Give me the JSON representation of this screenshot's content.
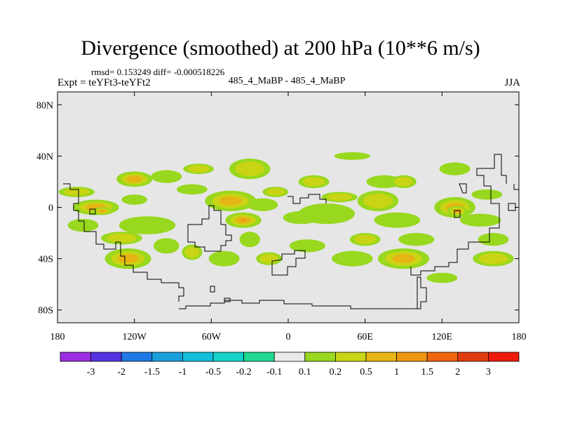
{
  "chart_data": {
    "type": "heatmap",
    "title": "Divergence (smoothed) at 200 hPa (10**6 m/s)",
    "stats_text": "rmsd= 0.153249 diff= -0.000518226",
    "left_label": "Expt = teYFt3-teYFt2",
    "center_label": "485_4_MaBP - 485_4_MaBP",
    "right_label": "JJA",
    "x_axis": {
      "range": [
        -180,
        180
      ],
      "tick_values": [
        -180,
        -120,
        -60,
        0,
        60,
        120,
        180
      ],
      "tick_labels": [
        "180",
        "120W",
        "60W",
        "0",
        "60E",
        "120E",
        "180"
      ]
    },
    "y_axis": {
      "range": [
        -90,
        90
      ],
      "tick_values": [
        80,
        40,
        0,
        -40,
        -80
      ],
      "tick_labels": [
        "80N",
        "40N",
        "0",
        "40S",
        "80S"
      ]
    },
    "colorbar": {
      "levels": [
        "-3",
        "-2",
        "-1.5",
        "-1",
        "-0.5",
        "-0.2",
        "-0.1",
        "0.1",
        "0.2",
        "0.5",
        "1",
        "1.5",
        "2",
        "3"
      ],
      "colors": [
        "#9b2ee0",
        "#5533e0",
        "#1e78e6",
        "#19a0dc",
        "#14bedc",
        "#15d2c8",
        "#20d890",
        "#eaeaea",
        "#98d81e",
        "#c8d414",
        "#e6b414",
        "#ee9614",
        "#ee640f",
        "#e23c0e",
        "#ee1a0a"
      ]
    },
    "anomalies": [
      {
        "lon": -165,
        "lat": 12,
        "rx": 14,
        "ry": 4,
        "cls": 2
      },
      {
        "lon": -150,
        "lat": 0,
        "rx": 18,
        "ry": 6,
        "cls": 3
      },
      {
        "lon": -145,
        "lat": -3,
        "rx": 8,
        "ry": 3,
        "cls": 4
      },
      {
        "lon": -160,
        "lat": -14,
        "rx": 12,
        "ry": 5,
        "cls": 1
      },
      {
        "lon": -120,
        "lat": 6,
        "rx": 10,
        "ry": 4,
        "cls": 1
      },
      {
        "lon": -120,
        "lat": 22,
        "rx": 14,
        "ry": 6,
        "cls": 3
      },
      {
        "lon": -95,
        "lat": 24,
        "rx": 12,
        "ry": 5,
        "cls": 1
      },
      {
        "lon": -75,
        "lat": 14,
        "rx": 12,
        "ry": 4,
        "cls": 1
      },
      {
        "lon": -110,
        "lat": -14,
        "rx": 22,
        "ry": 7,
        "cls": 1
      },
      {
        "lon": -130,
        "lat": -24,
        "rx": 16,
        "ry": 5,
        "cls": 2
      },
      {
        "lon": -125,
        "lat": -40,
        "rx": 18,
        "ry": 8,
        "cls": 3
      },
      {
        "lon": -95,
        "lat": -30,
        "rx": 10,
        "ry": 6,
        "cls": 1
      },
      {
        "lon": -75,
        "lat": -35,
        "rx": 8,
        "ry": 6,
        "cls": 2
      },
      {
        "lon": -45,
        "lat": 5,
        "rx": 20,
        "ry": 8,
        "cls": 3
      },
      {
        "lon": -35,
        "lat": -10,
        "rx": 14,
        "ry": 6,
        "cls": 4
      },
      {
        "lon": -20,
        "lat": 2,
        "rx": 12,
        "ry": 5,
        "cls": 1
      },
      {
        "lon": -30,
        "lat": 30,
        "rx": 16,
        "ry": 8,
        "cls": 2
      },
      {
        "lon": -10,
        "lat": 12,
        "rx": 10,
        "ry": 4,
        "cls": 2
      },
      {
        "lon": -30,
        "lat": -25,
        "rx": 8,
        "ry": 6,
        "cls": 1
      },
      {
        "lon": -50,
        "lat": -40,
        "rx": 12,
        "ry": 6,
        "cls": 1
      },
      {
        "lon": -15,
        "lat": -40,
        "rx": 10,
        "ry": 5,
        "cls": 2
      },
      {
        "lon": 10,
        "lat": -8,
        "rx": 14,
        "ry": 5,
        "cls": 1
      },
      {
        "lon": 30,
        "lat": -5,
        "rx": 22,
        "ry": 8,
        "cls": 1
      },
      {
        "lon": 40,
        "lat": 8,
        "rx": 14,
        "ry": 4,
        "cls": 2
      },
      {
        "lon": 20,
        "lat": 20,
        "rx": 12,
        "ry": 5,
        "cls": 2
      },
      {
        "lon": 15,
        "lat": -30,
        "rx": 14,
        "ry": 5,
        "cls": 1
      },
      {
        "lon": 50,
        "lat": -40,
        "rx": 16,
        "ry": 6,
        "cls": 1
      },
      {
        "lon": 60,
        "lat": -25,
        "rx": 12,
        "ry": 5,
        "cls": 2
      },
      {
        "lon": 70,
        "lat": 5,
        "rx": 16,
        "ry": 8,
        "cls": 2
      },
      {
        "lon": 75,
        "lat": 20,
        "rx": 14,
        "ry": 5,
        "cls": 1
      },
      {
        "lon": 90,
        "lat": 20,
        "rx": 10,
        "ry": 5,
        "cls": 2
      },
      {
        "lon": 85,
        "lat": -10,
        "rx": 18,
        "ry": 6,
        "cls": 1
      },
      {
        "lon": 100,
        "lat": -25,
        "rx": 14,
        "ry": 5,
        "cls": 1
      },
      {
        "lon": 90,
        "lat": -40,
        "rx": 20,
        "ry": 8,
        "cls": 3
      },
      {
        "lon": 130,
        "lat": 0,
        "rx": 16,
        "ry": 8,
        "cls": 3
      },
      {
        "lon": 132,
        "lat": -3,
        "rx": 8,
        "ry": 4,
        "cls": 4
      },
      {
        "lon": 150,
        "lat": -10,
        "rx": 16,
        "ry": 5,
        "cls": 1
      },
      {
        "lon": 155,
        "lat": 10,
        "rx": 12,
        "ry": 4,
        "cls": 1
      },
      {
        "lon": 160,
        "lat": -25,
        "rx": 12,
        "ry": 5,
        "cls": 1
      },
      {
        "lon": 130,
        "lat": 30,
        "rx": 12,
        "ry": 5,
        "cls": 1
      },
      {
        "lon": 160,
        "lat": -40,
        "rx": 16,
        "ry": 6,
        "cls": 2
      },
      {
        "lon": 120,
        "lat": -55,
        "rx": 12,
        "ry": 4,
        "cls": 1
      },
      {
        "lon": 50,
        "lat": 40,
        "rx": 14,
        "ry": 3,
        "cls": 1
      },
      {
        "lon": -70,
        "lat": 30,
        "rx": 12,
        "ry": 4,
        "cls": 2
      }
    ]
  }
}
